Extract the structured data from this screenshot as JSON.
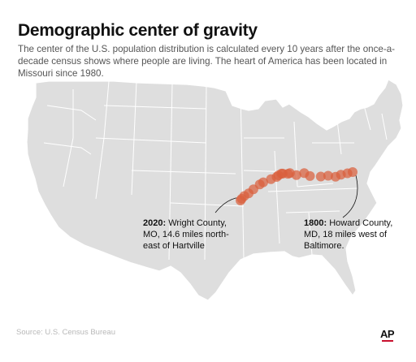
{
  "title": "Demographic center of gravity",
  "subtitle": "The center of the U.S. population distribution is calculated every 10 years after the once-a-decade census shows where people are living. The heart of America has been located in Missouri since 1980.",
  "map": {
    "region": "contiguous United States",
    "land_color": "#dedede",
    "border_color": "#ffffff",
    "dot_color": "#d9603d",
    "path_points": [
      {
        "year": 1800,
        "lon": -76.94,
        "lat": 39.27
      },
      {
        "year": 1810,
        "lon": -77.65,
        "lat": 39.19
      },
      {
        "year": 1820,
        "lon": -78.55,
        "lat": 39.1
      },
      {
        "year": 1830,
        "lon": -79.28,
        "lat": 38.96
      },
      {
        "year": 1840,
        "lon": -80.3,
        "lat": 39.03
      },
      {
        "year": 1850,
        "lon": -81.32,
        "lat": 38.98
      },
      {
        "year": 1860,
        "lon": -82.8,
        "lat": 39.01
      },
      {
        "year": 1870,
        "lon": -83.59,
        "lat": 39.2
      },
      {
        "year": 1880,
        "lon": -84.66,
        "lat": 39.07
      },
      {
        "year": 1890,
        "lon": -85.55,
        "lat": 39.2
      },
      {
        "year": 1900,
        "lon": -85.82,
        "lat": 39.16
      },
      {
        "year": 1910,
        "lon": -86.54,
        "lat": 39.17
      },
      {
        "year": 1920,
        "lon": -86.72,
        "lat": 39.17
      },
      {
        "year": 1930,
        "lon": -87.13,
        "lat": 39.06
      },
      {
        "year": 1940,
        "lon": -87.37,
        "lat": 38.95
      },
      {
        "year": 1950,
        "lon": -88.15,
        "lat": 38.8
      },
      {
        "year": 1960,
        "lon": -89.21,
        "lat": 38.6
      },
      {
        "year": 1970,
        "lon": -89.7,
        "lat": 38.46
      },
      {
        "year": 1980,
        "lon": -90.57,
        "lat": 38.14
      },
      {
        "year": 1990,
        "lon": -91.22,
        "lat": 37.87
      },
      {
        "year": 2000,
        "lon": -91.81,
        "lat": 37.7
      },
      {
        "year": 2010,
        "lon": -92.17,
        "lat": 37.52
      },
      {
        "year": 2020,
        "lon": -92.34,
        "lat": 37.41
      }
    ]
  },
  "callouts": {
    "y2020": {
      "year_label": "2020:",
      "text": "Wright County, MO, 14.6 miles north-east of Hartville",
      "line1": "Wright County,",
      "line2": "MO, 14.6 miles north-",
      "line3": "east of Hartville"
    },
    "y1800": {
      "year_label": "1800:",
      "text": "Howard County, MD, 18 miles west of Baltimore.",
      "line1": "Howard County,",
      "line2": "MD, 18 miles west of",
      "line3": "Baltimore."
    }
  },
  "source": "Source: U.S. Census Bureau",
  "logo": "AP"
}
